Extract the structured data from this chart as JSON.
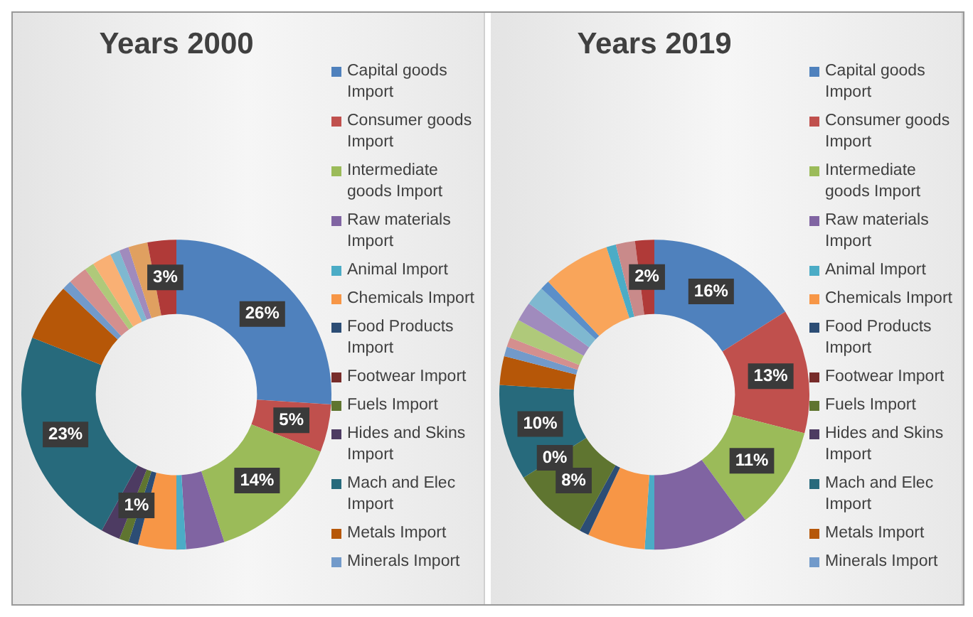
{
  "chart_data": [
    {
      "type": "donut",
      "title": "Years 2000",
      "legend": "right",
      "categories": [
        "Capital goods Import",
        "Consumer goods Import",
        "Intermediate goods Import",
        "Raw materials Import",
        "Animal Import",
        "Chemicals Import",
        "Food Products Import",
        "Footwear Import",
        "Fuels Import",
        "Hides and Skins Import",
        "Mach and Elec Import",
        "Metals Import",
        "Minerals Import",
        null,
        null,
        null,
        null,
        null,
        null,
        null
      ],
      "values": [
        26,
        5,
        14,
        4,
        1,
        4,
        1,
        0,
        1,
        2,
        23,
        6,
        1,
        2,
        1,
        2,
        1,
        1,
        2,
        3
      ],
      "colors": [
        "#4f81bd",
        "#c0504d",
        "#9bbb59",
        "#8064a2",
        "#4bacc6",
        "#f79646",
        "#2c4d75",
        "#772c2a",
        "#5f7530",
        "#4d3b62",
        "#276a7c",
        "#b65708",
        "#729aca",
        "#d48f8e",
        "#afc97a",
        "#f9b074",
        "#7fb8d0",
        "#a08bbd",
        "#e0a060",
        "#b03a38"
      ],
      "value_labels": [
        "26%",
        "5%",
        "14%",
        null,
        null,
        null,
        null,
        null,
        "1%",
        null,
        "23%",
        null,
        null,
        null,
        null,
        null,
        null,
        null,
        null,
        "3%"
      ]
    },
    {
      "type": "donut",
      "title": "Years 2019",
      "legend": "right",
      "categories": [
        "Capital goods Import",
        "Consumer goods Import",
        "Intermediate goods Import",
        "Raw materials Import",
        "Animal Import",
        "Chemicals Import",
        "Food Products Import",
        "Footwear Import",
        "Fuels Import",
        "Hides and Skins Import",
        "Mach and Elec Import",
        "Metals Import",
        "Minerals Import",
        null,
        null,
        null,
        null,
        null,
        null,
        null,
        null,
        null
      ],
      "values": [
        16,
        13,
        11,
        10,
        1,
        6,
        1,
        0,
        8,
        0,
        10,
        3,
        1,
        1,
        2,
        2,
        2,
        1,
        7,
        1,
        2,
        2
      ],
      "colors": [
        "#4f81bd",
        "#c0504d",
        "#9bbb59",
        "#8064a2",
        "#4bacc6",
        "#f79646",
        "#2c4d75",
        "#772c2a",
        "#5f7530",
        "#4d3b62",
        "#276a7c",
        "#b65708",
        "#729aca",
        "#d48f8e",
        "#afc97a",
        "#a08bbd",
        "#7fb8d0",
        "#5b8fc9",
        "#f9a55a",
        "#4bacc6",
        "#c98a8a",
        "#b03a38"
      ],
      "value_labels": [
        "16%",
        "13%",
        "11%",
        null,
        null,
        null,
        null,
        null,
        "8%",
        "0%",
        "10%",
        null,
        null,
        null,
        null,
        null,
        null,
        null,
        null,
        null,
        null,
        "2%"
      ]
    }
  ]
}
